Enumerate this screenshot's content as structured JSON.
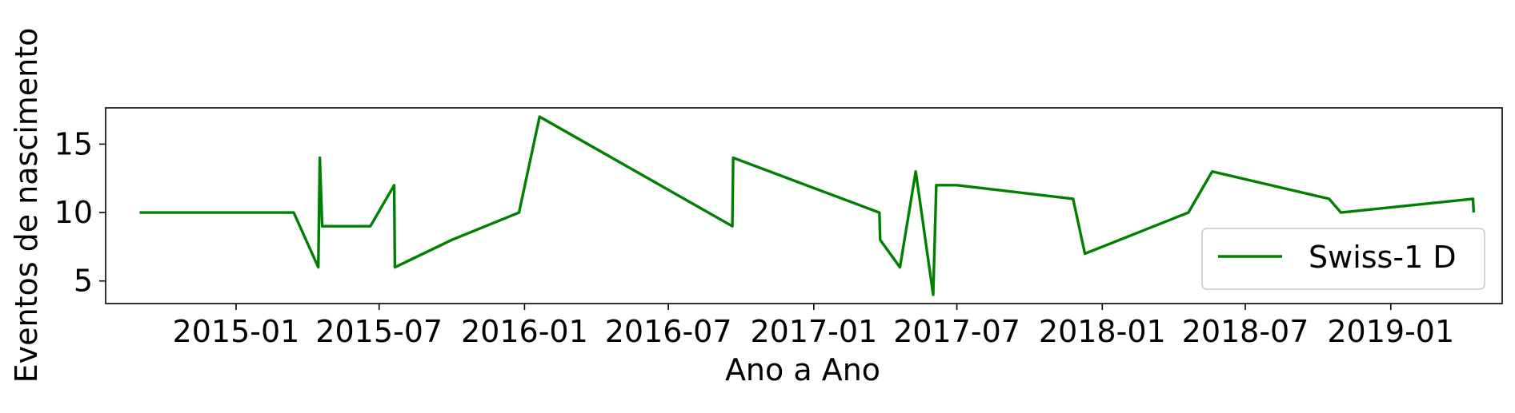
{
  "chart_data": {
    "type": "line",
    "title": "",
    "xlabel": "Ano a Ano",
    "ylabel": "Eventos de nascimento",
    "x_ticks": [
      "2015-01",
      "2015-07",
      "2016-01",
      "2016-07",
      "2017-01",
      "2017-07",
      "2018-01",
      "2018-07",
      "2019-01"
    ],
    "y_ticks": [
      5,
      10,
      15
    ],
    "xlim": [
      "2014-07-20",
      "2019-05-22"
    ],
    "ylim": [
      3.35,
      17.65
    ],
    "grid": false,
    "legend_position": "lower right",
    "colors": {
      "series": "#008000"
    },
    "series": [
      {
        "name": "Swiss-1 D",
        "x": [
          "2014-09-01",
          "2015-03-15",
          "2015-04-15",
          "2015-04-17",
          "2015-04-20",
          "2015-06-20",
          "2015-07-20",
          "2015-07-21",
          "2015-10-01",
          "2015-12-25",
          "2016-01-20",
          "2016-09-20",
          "2016-09-21",
          "2017-03-25",
          "2017-03-26",
          "2017-04-20",
          "2017-05-10",
          "2017-06-01",
          "2017-06-05",
          "2017-07-01",
          "2017-11-25",
          "2017-12-10",
          "2018-04-20",
          "2018-05-20",
          "2018-10-15",
          "2018-10-30",
          "2019-04-15",
          "2019-04-16"
        ],
        "y": [
          10,
          10,
          6,
          14,
          9,
          9,
          12,
          6,
          8,
          10,
          17,
          9,
          14,
          10,
          8,
          6,
          13,
          4,
          12,
          12,
          11,
          7,
          10,
          13,
          11,
          10,
          11,
          10
        ]
      }
    ]
  }
}
